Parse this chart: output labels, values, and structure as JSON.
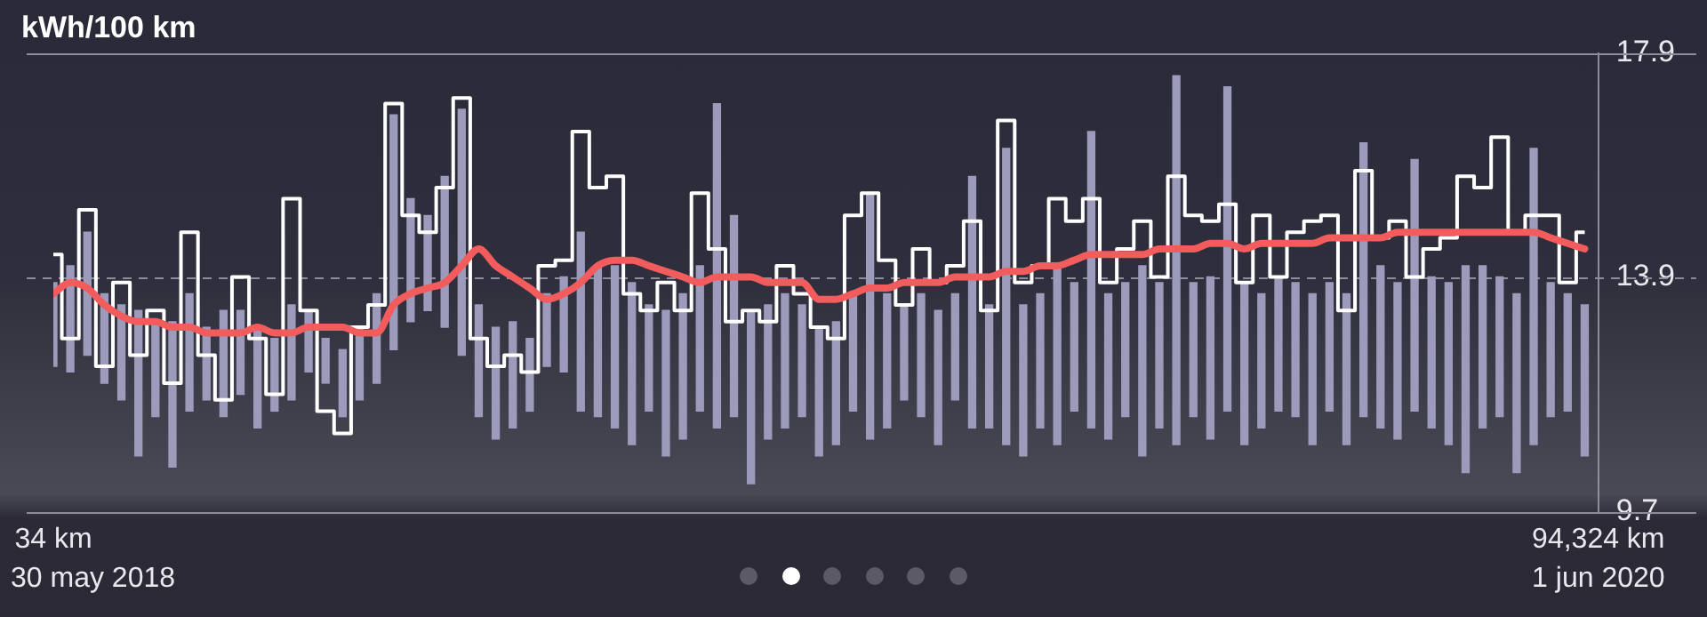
{
  "chart_data": {
    "type": "bar",
    "ylabel": "kWh/100 km",
    "marker": "none",
    "grid": "y",
    "xlim": [
      34,
      94324
    ],
    "xticks": [
      {
        "value": 34,
        "label": "34 km"
      },
      {
        "value": 94324,
        "label": "94,324 km"
      }
    ],
    "ylim": [
      9.7,
      17.9
    ],
    "yticks": [
      9.7,
      13.9,
      17.9
    ],
    "annotations": [
      "30 may 2018",
      "1 jun 2020"
    ],
    "x": [
      34,
      1072,
      2111,
      3149,
      4188,
      5226,
      6264,
      7303,
      8341,
      9380,
      10418,
      11456,
      12495,
      13533,
      14572,
      15610,
      16648,
      17687,
      18725,
      19764,
      20802,
      21840,
      22879,
      23917,
      24956,
      25994,
      27032,
      28071,
      29109,
      30148,
      31186,
      32224,
      33263,
      34301,
      35340,
      36378,
      37416,
      38455,
      39493,
      40532,
      41570,
      42608,
      43647,
      44685,
      45724,
      46762,
      47800,
      48839,
      49877,
      50916,
      51954,
      52992,
      54031,
      55069,
      56108,
      57146,
      58184,
      59223,
      60261,
      61300,
      62338,
      63376,
      64415,
      65453,
      66492,
      67530,
      68568,
      69607,
      70645,
      71684,
      72722,
      73760,
      74799,
      75837,
      76876,
      77914,
      78952,
      79991,
      81029,
      82068,
      83106,
      84144,
      85183,
      86221,
      87260,
      88298,
      89336,
      90375,
      91413,
      92452,
      93490
    ],
    "series": [
      {
        "color": "#9d9bbb",
        "base": [
          12.3,
          12.2,
          12.5,
          12.0,
          11.7,
          10.7,
          11.4,
          10.5,
          11.5,
          11.7,
          11.4,
          11.8,
          11.2,
          11.5,
          11.7,
          12.2,
          12.0,
          11.4,
          11.7,
          12.0,
          12.6,
          13.1,
          13.3,
          13.0,
          12.5,
          11.4,
          11.0,
          11.2,
          11.5,
          12.3,
          12.2,
          11.5,
          11.4,
          11.2,
          10.9,
          11.5,
          10.7,
          11.0,
          11.5,
          11.2,
          11.4,
          10.2,
          11.0,
          11.2,
          11.4,
          10.7,
          10.9,
          11.5,
          11.0,
          11.2,
          11.7,
          11.4,
          10.9,
          11.7,
          11.2,
          11.2,
          10.9,
          10.7,
          11.2,
          10.9,
          11.5,
          11.2,
          11.0,
          11.4,
          10.7,
          11.2,
          10.9,
          11.4,
          11.0,
          11.5,
          10.9,
          11.2,
          11.5,
          11.4,
          10.9,
          11.5,
          10.9,
          11.4,
          11.2,
          11.0,
          11.5,
          11.2,
          10.9,
          10.4,
          11.2,
          11.4,
          10.4,
          10.9,
          11.4,
          11.5,
          10.7
        ],
        "values": [
          1.5,
          1.9,
          2.2,
          1.6,
          1.7,
          2.6,
          1.7,
          2.6,
          2.1,
          1.3,
          1.9,
          1.5,
          1.8,
          1.3,
          1.7,
          1.1,
          0.8,
          1.2,
          1.3,
          1.6,
          4.2,
          2.2,
          1.7,
          2.7,
          4.4,
          2.0,
          2.0,
          1.9,
          1.3,
          1.3,
          1.7,
          3.2,
          2.7,
          2.9,
          2.9,
          1.9,
          2.6,
          2.6,
          2.6,
          5.8,
          3.6,
          3.1,
          2.4,
          2.4,
          2.0,
          2.3,
          2.2,
          2.1,
          4.4,
          2.4,
          1.7,
          2.2,
          2.4,
          1.9,
          4.5,
          2.2,
          5.3,
          2.7,
          2.4,
          3.2,
          2.3,
          5.3,
          2.6,
          2.4,
          3.4,
          2.6,
          6.6,
          2.4,
          2.9,
          5.8,
          2.9,
          2.4,
          2.4,
          2.4,
          2.7,
          2.3,
          2.7,
          4.9,
          2.9,
          2.8,
          4.5,
          2.7,
          2.9,
          3.7,
          2.9,
          2.5,
          3.2,
          5.3,
          2.4,
          2.1,
          2.7
        ]
      },
      {
        "type": "step",
        "color": "#ffffff",
        "values": [
          14.3,
          12.8,
          15.1,
          12.3,
          13.8,
          12.5,
          13.3,
          12.0,
          14.7,
          12.5,
          11.7,
          13.9,
          12.8,
          11.8,
          15.3,
          13.3,
          11.5,
          11.1,
          13.0,
          13.4,
          17.0,
          15.0,
          14.7,
          15.5,
          17.1,
          12.8,
          12.3,
          12.5,
          12.2,
          14.1,
          14.2,
          16.5,
          15.5,
          15.7,
          13.6,
          13.3,
          13.8,
          13.3,
          15.4,
          14.4,
          13.1,
          13.3,
          13.1,
          14.1,
          13.6,
          13.0,
          12.8,
          15.0,
          15.4,
          14.2,
          13.4,
          14.4,
          13.8,
          14.1,
          14.9,
          13.3,
          16.7,
          13.8,
          14.1,
          15.3,
          14.9,
          15.3,
          13.8,
          14.4,
          14.9,
          13.9,
          15.7,
          15.0,
          14.9,
          15.2,
          13.8,
          15.0,
          13.9,
          14.7,
          14.9,
          15.0,
          13.3,
          15.8,
          14.6,
          14.9,
          13.9,
          14.4,
          14.6,
          15.7,
          15.5,
          16.4,
          14.7,
          15.0,
          15.0,
          13.8,
          14.7
        ]
      },
      {
        "type": "line",
        "color": "#f25c5c",
        "values": [
          13.6,
          13.8,
          13.7,
          13.4,
          13.2,
          13.1,
          13.1,
          13.0,
          13.0,
          12.9,
          12.9,
          12.9,
          13.0,
          12.9,
          12.9,
          13.0,
          13.0,
          13.0,
          12.9,
          12.9,
          13.4,
          13.6,
          13.7,
          13.8,
          14.1,
          14.4,
          14.1,
          13.9,
          13.7,
          13.5,
          13.6,
          13.8,
          14.1,
          14.2,
          14.2,
          14.1,
          14.0,
          13.9,
          13.8,
          13.9,
          13.9,
          13.9,
          13.8,
          13.8,
          13.8,
          13.5,
          13.5,
          13.6,
          13.7,
          13.7,
          13.8,
          13.8,
          13.8,
          13.9,
          13.9,
          13.9,
          14.0,
          14.0,
          14.1,
          14.1,
          14.2,
          14.3,
          14.3,
          14.3,
          14.3,
          14.4,
          14.4,
          14.4,
          14.5,
          14.5,
          14.4,
          14.5,
          14.5,
          14.5,
          14.5,
          14.6,
          14.6,
          14.6,
          14.6,
          14.7,
          14.7,
          14.7,
          14.7,
          14.7,
          14.7,
          14.7,
          14.7,
          14.7,
          14.6,
          14.5,
          14.4
        ]
      }
    ]
  }
}
